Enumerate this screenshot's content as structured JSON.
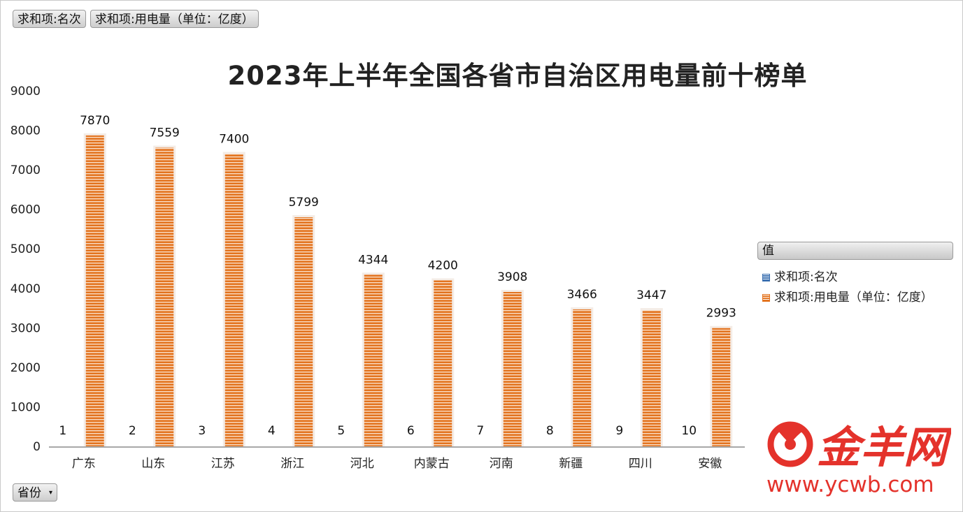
{
  "fields": {
    "rank_button": "求和项:名次",
    "power_button": "求和项:用电量（单位：亿度）",
    "row_field_button": "省份"
  },
  "legend": {
    "header": "值",
    "items": [
      {
        "label": "求和项:名次",
        "color": "#3a6fb0"
      },
      {
        "label": "求和项:用电量（单位：亿度）",
        "color": "#e37420"
      }
    ]
  },
  "watermark": {
    "brand": "金羊网",
    "url": "www.ycwb.com",
    "color": "#e4322b"
  },
  "chart_data": {
    "type": "bar",
    "title": "2023年上半年全国各省市自治区用电量前十榜单",
    "categories": [
      "广东",
      "山东",
      "江苏",
      "浙江",
      "河北",
      "内蒙古",
      "河南",
      "新疆",
      "四川",
      "安徽"
    ],
    "series": [
      {
        "name": "求和项:名次",
        "values": [
          1,
          2,
          3,
          4,
          5,
          6,
          7,
          8,
          9,
          10
        ],
        "color": "#3a6fb0"
      },
      {
        "name": "求和项:用电量（单位：亿度）",
        "values": [
          7870,
          7559,
          7400,
          5799,
          4344,
          4200,
          3908,
          3466,
          3447,
          2993
        ],
        "color": "#e37420"
      }
    ],
    "ylim": [
      0,
      9000
    ],
    "yticks": [
      0,
      1000,
      2000,
      3000,
      4000,
      5000,
      6000,
      7000,
      8000,
      9000
    ],
    "grid": false,
    "legend_position": "right"
  }
}
